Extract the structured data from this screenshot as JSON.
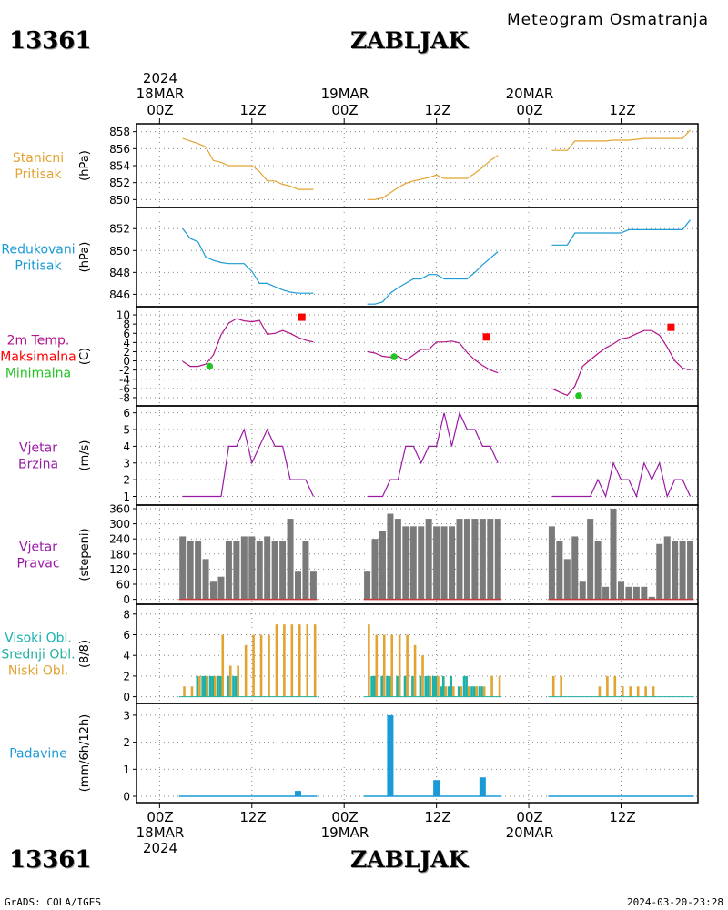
{
  "header": {
    "station_id": "13361",
    "station_name": "ZABLJAK",
    "title": "Meteogram Osmatranja"
  },
  "time_axis": {
    "year": "2024",
    "ticks": [
      {
        "day": "18MAR",
        "label": "00Z",
        "hour": 0
      },
      {
        "day": "",
        "label": "12Z",
        "hour": 12
      },
      {
        "day": "19MAR",
        "label": "00Z",
        "hour": 24
      },
      {
        "day": "",
        "label": "12Z",
        "hour": 36
      },
      {
        "day": "20MAR",
        "label": "00Z",
        "hour": 48
      },
      {
        "day": "",
        "label": "12Z",
        "hour": 60
      }
    ],
    "hour_range": [
      -3,
      70
    ]
  },
  "footer": {
    "left": "GrADS: COLA/IGES",
    "right": "2024-03-20-23:28"
  },
  "colors": {
    "orange": "#e2a330",
    "blue": "#1a9ad6",
    "magenta": "#b0128a",
    "red": "#ff0000",
    "green": "#22c422",
    "purple": "#9a1aa6",
    "gray": "#7a7a7a",
    "teal": "#18b2b2",
    "mid": "#22b0a0"
  },
  "chart_data": [
    {
      "type": "line",
      "labels": [
        "Stanicni",
        "Pritisak"
      ],
      "ylabel": "(hPa)",
      "ylim": [
        849.5,
        858.5
      ],
      "yticks": [
        850,
        852,
        854,
        856,
        858
      ],
      "series": [
        {
          "x": [
            3,
            5,
            6,
            7,
            8,
            9,
            10,
            11,
            12,
            13,
            14,
            15,
            16,
            17,
            18,
            19,
            20
          ],
          "y": [
            857.2,
            856.6,
            856.2,
            854.6,
            854.4,
            854.0,
            854.0,
            854.0,
            854.0,
            853.3,
            852.2,
            852.2,
            851.8,
            851.6,
            851.2,
            851.2,
            851.2
          ]
        },
        {
          "x": [
            27,
            28,
            29,
            30,
            31,
            32,
            33,
            34,
            35,
            36,
            37,
            38,
            39,
            40,
            41,
            42,
            43,
            44
          ],
          "y": [
            850.0,
            850.0,
            850.2,
            850.8,
            851.4,
            851.9,
            852.2,
            852.4,
            852.6,
            852.9,
            852.5,
            852.5,
            852.5,
            852.5,
            853.1,
            853.8,
            854.6,
            855.2
          ]
        },
        {
          "x": [
            51,
            52,
            53,
            54,
            55,
            56,
            57,
            58,
            59,
            60,
            61,
            62,
            63,
            64,
            65,
            66,
            67,
            68,
            69
          ],
          "y": [
            855.8,
            855.8,
            855.8,
            856.9,
            856.9,
            856.9,
            856.9,
            856.9,
            857.0,
            857.0,
            857.0,
            857.1,
            857.2,
            857.2,
            857.2,
            857.2,
            857.2,
            857.2,
            858.2
          ]
        }
      ]
    },
    {
      "type": "line",
      "labels": [
        "Redukovani",
        "Pritisak"
      ],
      "ylabel": "(hPa)",
      "ylim": [
        845.2,
        853.6
      ],
      "yticks": [
        846,
        848,
        850,
        852
      ],
      "series": [
        {
          "x": [
            3,
            4,
            5,
            6,
            7,
            8,
            9,
            10,
            11,
            12,
            13,
            14,
            15,
            16,
            17,
            18,
            19,
            20
          ],
          "y": [
            852.0,
            851.1,
            850.8,
            849.4,
            849.1,
            848.9,
            848.8,
            848.8,
            848.8,
            848.1,
            847.0,
            847.0,
            846.7,
            846.4,
            846.2,
            846.1,
            846.1,
            846.1
          ]
        },
        {
          "x": [
            27,
            28,
            29,
            30,
            31,
            32,
            33,
            34,
            35,
            36,
            37,
            38,
            39,
            40,
            41,
            42,
            43,
            44
          ],
          "y": [
            845.1,
            845.1,
            845.3,
            846.1,
            846.6,
            847.0,
            847.4,
            847.4,
            847.8,
            847.8,
            847.4,
            847.4,
            847.4,
            847.4,
            848.0,
            848.7,
            849.3,
            849.9
          ]
        },
        {
          "x": [
            51,
            52,
            53,
            54,
            55,
            56,
            57,
            58,
            59,
            60,
            61,
            62,
            63,
            64,
            65,
            66,
            67,
            68,
            69
          ],
          "y": [
            850.5,
            850.5,
            850.5,
            851.6,
            851.6,
            851.6,
            851.6,
            851.6,
            851.6,
            851.6,
            851.9,
            851.9,
            851.9,
            851.9,
            851.9,
            851.9,
            851.9,
            851.9,
            852.8
          ]
        }
      ]
    },
    {
      "type": "line",
      "labels": [
        "2m Temp.",
        "Maksimalna",
        "Minimalna"
      ],
      "label_color_keys": [
        "magenta",
        "red",
        "green"
      ],
      "ylabel": "(C)",
      "ylim": [
        -9,
        11
      ],
      "yticks": [
        -8,
        -6,
        -4,
        -2,
        0,
        2,
        4,
        6,
        8,
        10
      ],
      "series": [
        {
          "x": [
            3,
            4,
            5,
            6,
            7,
            8,
            9,
            10,
            11,
            12,
            13,
            14,
            15,
            16,
            17,
            18,
            19,
            20
          ],
          "y": [
            -0.1,
            -1.2,
            -1.2,
            -0.7,
            1.3,
            5.7,
            8.2,
            9.2,
            8.7,
            8.5,
            8.8,
            5.8,
            6.0,
            6.6,
            6.0,
            5.1,
            4.5,
            4.1
          ]
        },
        {
          "x": [
            27,
            28,
            29,
            30,
            31,
            32,
            33,
            34,
            35,
            36,
            37,
            38,
            39,
            40,
            41,
            42,
            43,
            44
          ],
          "y": [
            2.0,
            1.7,
            1.0,
            0.8,
            1.0,
            0.1,
            1.3,
            2.5,
            2.5,
            4.1,
            4.1,
            4.3,
            3.9,
            1.8,
            0.2,
            -1.0,
            -2.0,
            -2.6
          ]
        },
        {
          "x": [
            51,
            52,
            53,
            54,
            55,
            56,
            57,
            58,
            59,
            60,
            61,
            62,
            63,
            64,
            65,
            66,
            67,
            68,
            69
          ],
          "y": [
            -6.0,
            -6.8,
            -7.5,
            -5.5,
            -1.2,
            0.2,
            1.6,
            2.8,
            3.7,
            4.8,
            5.1,
            5.9,
            6.6,
            6.6,
            5.6,
            3.0,
            0.0,
            -1.6,
            -2.0
          ]
        }
      ],
      "max_points": [
        {
          "x": 18.5,
          "y": 9.5
        },
        {
          "x": 42.5,
          "y": 5.2
        },
        {
          "x": 66.5,
          "y": 7.3
        }
      ],
      "min_points": [
        {
          "x": 6.5,
          "y": -1.2
        },
        {
          "x": 30.5,
          "y": 0.9
        },
        {
          "x": 54.5,
          "y": -7.6
        }
      ]
    },
    {
      "type": "line",
      "labels": [
        "Vjetar",
        "Brzina"
      ],
      "ylabel": "(m/s)",
      "ylim": [
        0.7,
        6.2
      ],
      "yticks": [
        1,
        2,
        3,
        4,
        5,
        6
      ],
      "series": [
        {
          "x": [
            3,
            4,
            5,
            6,
            7,
            8,
            9,
            10,
            11,
            12,
            13,
            14,
            15,
            16,
            17,
            18,
            19,
            20
          ],
          "y": [
            1,
            1,
            1,
            1,
            1,
            1,
            4,
            4,
            5,
            3,
            4,
            5,
            4,
            4,
            2,
            2,
            2,
            1
          ]
        },
        {
          "x": [
            27,
            28,
            29,
            30,
            31,
            32,
            33,
            34,
            35,
            36,
            37,
            38,
            39,
            40,
            41,
            42,
            43,
            44
          ],
          "y": [
            1,
            1,
            1,
            2,
            2,
            4,
            4,
            3,
            4,
            4,
            6,
            4,
            6,
            5,
            5,
            4,
            4,
            3
          ]
        },
        {
          "x": [
            51,
            52,
            53,
            54,
            55,
            56,
            57,
            58,
            59,
            60,
            61,
            62,
            63,
            64,
            65,
            66,
            67,
            68,
            69
          ],
          "y": [
            1,
            1,
            1,
            1,
            1,
            1,
            2,
            1,
            3,
            2,
            2,
            1,
            3,
            2,
            3,
            1,
            2,
            2,
            1
          ]
        }
      ]
    },
    {
      "type": "bar",
      "labels": [
        "Vjetar",
        "Pravac"
      ],
      "ylabel": "(stepeni)",
      "ylim": [
        -5,
        360
      ],
      "yticks": [
        0,
        60,
        120,
        180,
        240,
        300,
        360
      ],
      "x": [
        3,
        4,
        5,
        6,
        7,
        8,
        9,
        10,
        11,
        12,
        13,
        14,
        15,
        16,
        17,
        18,
        19,
        20,
        27,
        28,
        29,
        30,
        31,
        32,
        33,
        34,
        35,
        36,
        37,
        38,
        39,
        40,
        41,
        42,
        43,
        44,
        51,
        52,
        53,
        54,
        55,
        56,
        57,
        58,
        59,
        60,
        61,
        62,
        63,
        64,
        65,
        66,
        67,
        68,
        69
      ],
      "values": [
        250,
        230,
        230,
        160,
        70,
        90,
        230,
        230,
        250,
        250,
        230,
        250,
        230,
        230,
        320,
        110,
        230,
        110,
        110,
        240,
        270,
        340,
        320,
        290,
        290,
        290,
        320,
        290,
        290,
        290,
        320,
        320,
        320,
        320,
        320,
        320,
        290,
        230,
        160,
        250,
        70,
        320,
        230,
        50,
        360,
        70,
        50,
        50,
        50,
        10,
        220,
        250,
        230,
        230,
        230
      ]
    },
    {
      "type": "bar",
      "labels": [
        "Visoki Obl.",
        "Srednji Obl.",
        "Niski Obl."
      ],
      "label_color_keys": [
        "teal",
        "mid",
        "orange"
      ],
      "ylabel": "(8/8)",
      "ylim": [
        -0.3,
        8.6
      ],
      "yticks": [
        0,
        2,
        4,
        6,
        8
      ],
      "x": [
        3,
        4,
        5,
        6,
        7,
        8,
        9,
        10,
        11,
        12,
        13,
        14,
        15,
        16,
        17,
        18,
        19,
        20,
        27,
        28,
        29,
        30,
        31,
        32,
        33,
        34,
        35,
        36,
        37,
        38,
        39,
        40,
        41,
        42,
        43,
        44,
        51,
        52,
        53,
        54,
        55,
        56,
        57,
        58,
        59,
        60,
        61,
        62,
        63,
        64,
        65,
        66,
        67,
        68,
        69
      ],
      "series": [
        {
          "name": "Visoki Obl.",
          "values": [
            0,
            0,
            0,
            2,
            2,
            2,
            0,
            2,
            0,
            0,
            0,
            0,
            0,
            0,
            0,
            0,
            0,
            0,
            0,
            2,
            0,
            2,
            0,
            0,
            0,
            0,
            2,
            2,
            1,
            1,
            0,
            2,
            1,
            1,
            0,
            0,
            0,
            0,
            0,
            0,
            0,
            0,
            0,
            0,
            0,
            0,
            0,
            0,
            0,
            0,
            0,
            0,
            0,
            0,
            0
          ]
        },
        {
          "name": "Srednji Obl.",
          "values": [
            0,
            0,
            2,
            2,
            2,
            2,
            2,
            2,
            0,
            0,
            0,
            0,
            0,
            0,
            0,
            0,
            0,
            0,
            0,
            2,
            2,
            2,
            2,
            2,
            2,
            2,
            2,
            2,
            2,
            2,
            1,
            2,
            1,
            1,
            0,
            0,
            0,
            0,
            0,
            0,
            0,
            0,
            0,
            0,
            0,
            0,
            0,
            0,
            0,
            0,
            0,
            0,
            0,
            0,
            0
          ]
        },
        {
          "name": "Niski Obl.",
          "values": [
            1,
            1,
            2,
            2,
            2,
            6,
            3,
            3,
            5,
            6,
            6,
            6,
            7,
            7,
            7,
            7,
            7,
            7,
            7,
            6,
            6,
            6,
            6,
            6,
            5,
            4,
            2,
            2,
            1,
            1,
            1,
            1,
            1,
            1,
            2,
            2,
            2,
            2,
            0,
            0,
            0,
            0,
            1,
            2,
            2,
            1,
            1,
            1,
            1,
            1,
            0,
            0,
            0,
            0,
            0
          ]
        }
      ]
    },
    {
      "type": "bar",
      "labels": [
        "Padavine"
      ],
      "ylabel": "(mm/6h/12h)",
      "ylim": [
        -0.1,
        3.3
      ],
      "yticks": [
        0,
        1,
        2,
        3
      ],
      "x": [
        18,
        30,
        36,
        42
      ],
      "values": [
        0.2,
        3.0,
        0.6,
        0.7
      ]
    }
  ]
}
